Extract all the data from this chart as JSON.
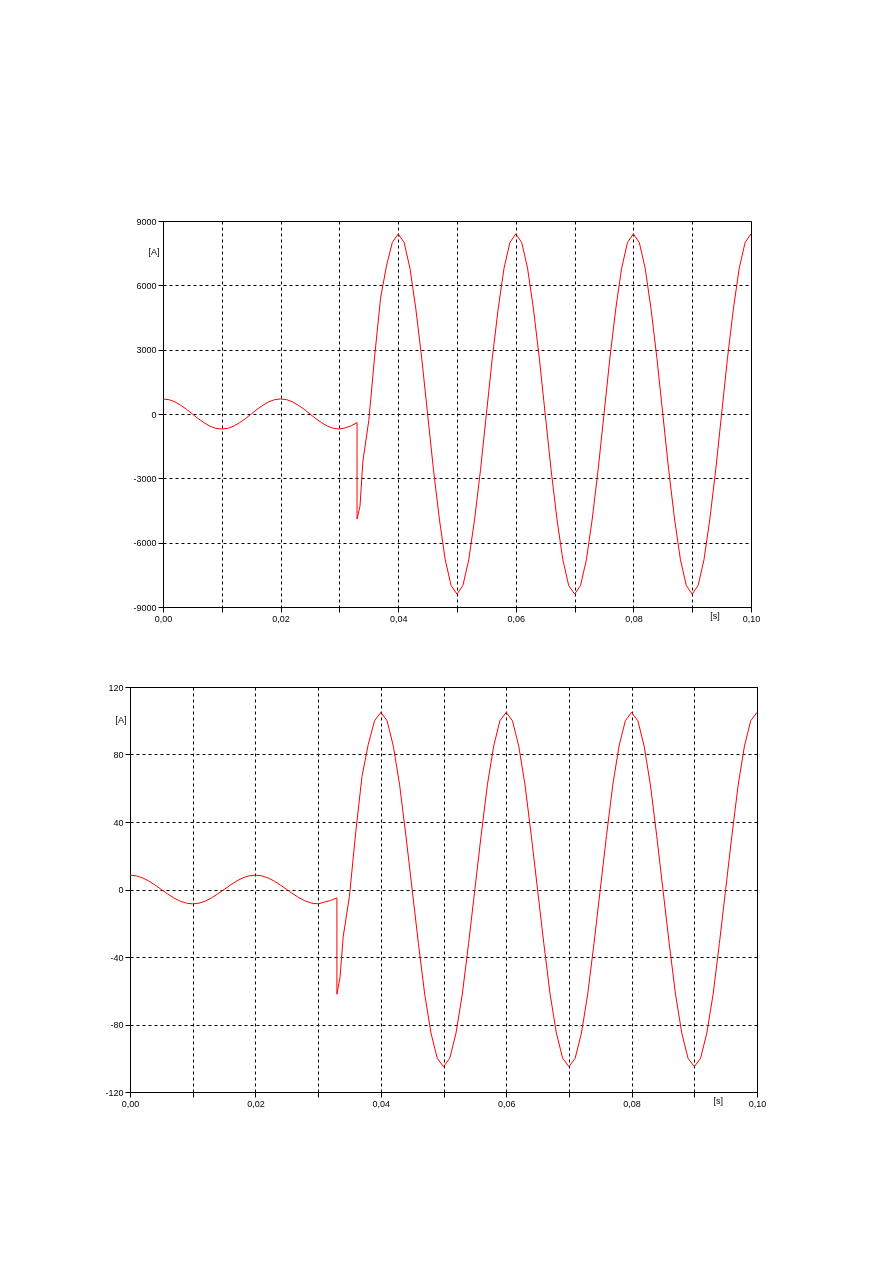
{
  "chart_data": [
    {
      "type": "line",
      "xlabel": "[s]",
      "ylabel": "[A]",
      "grid": true,
      "line_style": "solid",
      "marker": "none",
      "xlim": [
        0,
        0.1
      ],
      "ylim": [
        -9000,
        9000
      ],
      "xticks": [
        {
          "value": 0,
          "label": "0,00"
        },
        {
          "value": 0.01,
          "label": null
        },
        {
          "value": 0.02,
          "label": "0,02"
        },
        {
          "value": 0.03,
          "label": null
        },
        {
          "value": 0.04,
          "label": "0,04"
        },
        {
          "value": 0.05,
          "label": null
        },
        {
          "value": 0.06,
          "label": "0,06"
        },
        {
          "value": 0.07,
          "label": null
        },
        {
          "value": 0.08,
          "label": "0,08"
        },
        {
          "value": 0.09,
          "label": null
        },
        {
          "value": 0.1,
          "label": "0,10"
        }
      ],
      "yticks": [
        -9000,
        -6000,
        -3000,
        0,
        3000,
        6000,
        9000
      ],
      "series": [
        {
          "color": "#ff0000",
          "x": [
            0,
            0.001,
            0.002,
            0.003,
            0.004,
            0.005,
            0.006,
            0.007,
            0.008,
            0.009,
            0.01,
            0.011,
            0.012,
            0.013,
            0.014,
            0.015,
            0.016,
            0.017,
            0.018,
            0.019,
            0.02,
            0.021,
            0.022,
            0.023,
            0.024,
            0.025,
            0.026,
            0.027,
            0.028,
            0.029,
            0.03,
            0.031,
            0.032,
            0.033,
            0.033,
            0.0335,
            0.034,
            0.035,
            0.036,
            0.037,
            0.038,
            0.039,
            0.04,
            0.041,
            0.042,
            0.043,
            0.044,
            0.045,
            0.046,
            0.047,
            0.048,
            0.049,
            0.05,
            0.051,
            0.052,
            0.053,
            0.054,
            0.055,
            0.056,
            0.057,
            0.058,
            0.059,
            0.06,
            0.061,
            0.062,
            0.063,
            0.064,
            0.065,
            0.066,
            0.067,
            0.068,
            0.069,
            0.07,
            0.071,
            0.072,
            0.073,
            0.074,
            0.075,
            0.076,
            0.077,
            0.078,
            0.079,
            0.08,
            0.081,
            0.082,
            0.083,
            0.084,
            0.085,
            0.086,
            0.087,
            0.088,
            0.089,
            0.09,
            0.091,
            0.092,
            0.093,
            0.094,
            0.095,
            0.096,
            0.097,
            0.098,
            0.099,
            0.1
          ],
          "values": [
            700,
            670,
            570,
            410,
            220,
            0,
            -220,
            -410,
            -570,
            -670,
            -700,
            -670,
            -570,
            -410,
            -220,
            0,
            220,
            410,
            570,
            670,
            700,
            670,
            570,
            410,
            220,
            0,
            -220,
            -410,
            -570,
            -670,
            -700,
            -650,
            -550,
            -400,
            -4900,
            -4300,
            -2200,
            -300,
            2700,
            5400,
            6900,
            8000,
            8400,
            8000,
            6800,
            4900,
            2600,
            0,
            -2600,
            -4900,
            -6800,
            -8000,
            -8400,
            -8000,
            -6800,
            -4900,
            -2600,
            0,
            2600,
            4900,
            6800,
            8000,
            8400,
            8000,
            6800,
            4900,
            2600,
            0,
            -2600,
            -4900,
            -6800,
            -8000,
            -8400,
            -8000,
            -6800,
            -4900,
            -2600,
            0,
            2600,
            4900,
            6800,
            8000,
            8400,
            8000,
            6800,
            4900,
            2600,
            0,
            -2600,
            -4900,
            -6800,
            -8000,
            -8400,
            -8000,
            -6800,
            -4900,
            -2600,
            0,
            2600,
            4900,
            6800,
            8000,
            8400
          ]
        }
      ]
    },
    {
      "type": "line",
      "xlabel": "[s]",
      "ylabel": "[A]",
      "grid": true,
      "line_style": "solid",
      "marker": "none",
      "xlim": [
        0,
        0.1
      ],
      "ylim": [
        -120,
        120
      ],
      "xticks": [
        {
          "value": 0,
          "label": "0,00"
        },
        {
          "value": 0.01,
          "label": null
        },
        {
          "value": 0.02,
          "label": "0,02"
        },
        {
          "value": 0.03,
          "label": null
        },
        {
          "value": 0.04,
          "label": "0,04"
        },
        {
          "value": 0.05,
          "label": null
        },
        {
          "value": 0.06,
          "label": "0,06"
        },
        {
          "value": 0.07,
          "label": null
        },
        {
          "value": 0.08,
          "label": "0,08"
        },
        {
          "value": 0.09,
          "label": null
        },
        {
          "value": 0.1,
          "label": "0,10"
        }
      ],
      "yticks": [
        -120,
        -80,
        -40,
        0,
        40,
        80,
        120
      ],
      "series": [
        {
          "color": "#ff0000",
          "x": [
            0,
            0.001,
            0.002,
            0.003,
            0.004,
            0.005,
            0.006,
            0.007,
            0.008,
            0.009,
            0.01,
            0.011,
            0.012,
            0.013,
            0.014,
            0.015,
            0.016,
            0.017,
            0.018,
            0.019,
            0.02,
            0.021,
            0.022,
            0.023,
            0.024,
            0.025,
            0.026,
            0.027,
            0.028,
            0.029,
            0.03,
            0.031,
            0.032,
            0.033,
            0.033,
            0.0335,
            0.034,
            0.035,
            0.036,
            0.037,
            0.038,
            0.039,
            0.04,
            0.041,
            0.042,
            0.043,
            0.044,
            0.045,
            0.046,
            0.047,
            0.048,
            0.049,
            0.05,
            0.051,
            0.052,
            0.053,
            0.054,
            0.055,
            0.056,
            0.057,
            0.058,
            0.059,
            0.06,
            0.061,
            0.062,
            0.063,
            0.064,
            0.065,
            0.066,
            0.067,
            0.068,
            0.069,
            0.07,
            0.071,
            0.072,
            0.073,
            0.074,
            0.075,
            0.076,
            0.077,
            0.078,
            0.079,
            0.08,
            0.081,
            0.082,
            0.083,
            0.084,
            0.085,
            0.086,
            0.087,
            0.088,
            0.089,
            0.09,
            0.091,
            0.092,
            0.093,
            0.094,
            0.095,
            0.096,
            0.097,
            0.098,
            0.099,
            0.1
          ],
          "values": [
            8.5,
            8.1,
            6.9,
            5,
            2.6,
            0,
            -2.6,
            -5,
            -6.9,
            -8.1,
            -8.5,
            -8.1,
            -6.9,
            -5,
            -2.6,
            0,
            2.6,
            5,
            6.9,
            8.1,
            8.5,
            8.1,
            6.9,
            5,
            2.6,
            0,
            -2.6,
            -5,
            -6.9,
            -8.1,
            -8.5,
            -7.5,
            -6.5,
            -5,
            -62,
            -52,
            -28,
            -4,
            34,
            67,
            86,
            100,
            105,
            100,
            85,
            62,
            32,
            0,
            -32,
            -62,
            -85,
            -100,
            -105,
            -100,
            -85,
            -62,
            -32,
            0,
            32,
            62,
            85,
            100,
            105,
            100,
            85,
            62,
            32,
            0,
            -32,
            -62,
            -85,
            -100,
            -105,
            -100,
            -85,
            -62,
            -32,
            0,
            32,
            62,
            85,
            100,
            105,
            100,
            85,
            62,
            32,
            0,
            -32,
            -62,
            -85,
            -100,
            -105,
            -100,
            -85,
            -62,
            -32,
            0,
            32,
            62,
            85,
            100,
            105
          ]
        }
      ]
    }
  ]
}
